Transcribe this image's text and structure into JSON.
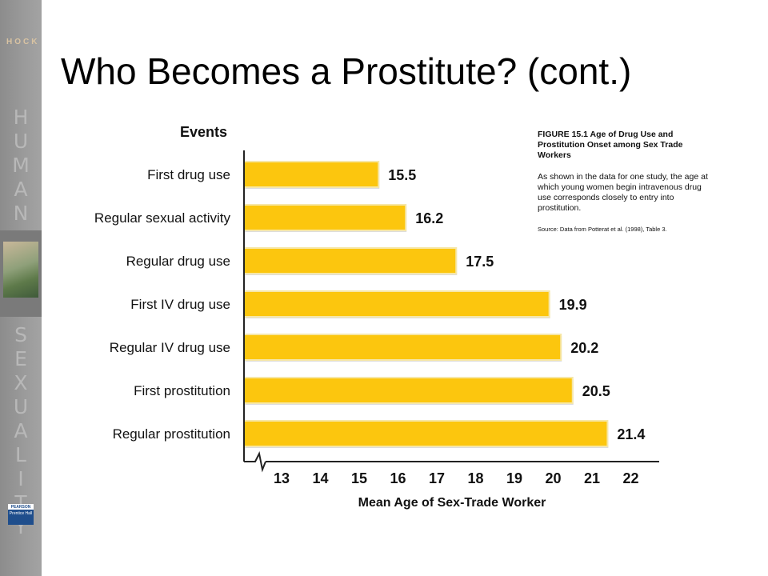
{
  "sidebar": {
    "brand": "HOCK",
    "word_top": "HUMAN",
    "word_bottom": "SEXUALITY",
    "logo_top": "PEARSON",
    "logo_bottom": "Prentice Hall"
  },
  "slide": {
    "title": "Who Becomes a Prostitute? (cont.)"
  },
  "figure": {
    "title": "FIGURE 15.1 Age of Drug Use and Prostitution Onset among Sex Trade Workers",
    "description": "As shown in the data for one study, the age at which young women begin intravenous drug use corresponds closely to entry into prostitution.",
    "source": "Source: Data from Potterat et al. (1998), Table 3."
  },
  "colors": {
    "bar": "#fcc60e",
    "bar_edge": "#f0b800",
    "axis": "#222222"
  },
  "chart_data": {
    "type": "bar",
    "orientation": "horizontal",
    "category_axis_title": "Events",
    "xlabel": "Mean Age of Sex-Trade Worker",
    "categories": [
      "First drug use",
      "Regular sexual activity",
      "Regular drug use",
      "First IV drug use",
      "Regular IV drug use",
      "First prostitution",
      "Regular prostitution"
    ],
    "values": [
      15.5,
      16.2,
      17.5,
      19.9,
      20.2,
      20.5,
      21.4
    ],
    "value_labels": [
      "15.5",
      "16.2",
      "17.5",
      "19.9",
      "20.2",
      "20.5",
      "21.4"
    ],
    "xticks": [
      "13",
      "14",
      "15",
      "16",
      "17",
      "18",
      "19",
      "20",
      "21",
      "22"
    ],
    "xlim": [
      12,
      22.8
    ],
    "axis_break": true,
    "grid": false
  }
}
